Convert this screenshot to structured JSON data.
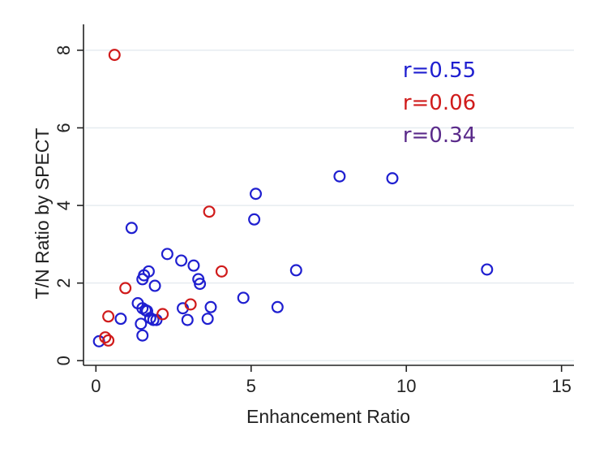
{
  "chart_data": {
    "type": "scatter",
    "title": "",
    "xlabel": "Enhancement Ratio",
    "ylabel": "T/N Ratio by SPECT",
    "xlim": [
      -0.4,
      15.4
    ],
    "ylim": [
      -0.12,
      8.5
    ],
    "xticks": [
      0,
      5,
      10,
      15
    ],
    "yticks": [
      0,
      2,
      4,
      6,
      8
    ],
    "grid": "horizontal",
    "legend": "none",
    "annotations": [
      {
        "text": "r=0.55",
        "color": "#1f1fd0"
      },
      {
        "text": "r=0.06",
        "color": "#d01b1b"
      },
      {
        "text": "r=0.34",
        "color": "#5a2a8a"
      }
    ],
    "series": [
      {
        "color": "#1f1fd0",
        "points": [
          [
            0.1,
            0.5
          ],
          [
            0.8,
            1.08
          ],
          [
            1.15,
            3.42
          ],
          [
            1.35,
            1.48
          ],
          [
            1.45,
            0.95
          ],
          [
            1.5,
            0.65
          ],
          [
            1.5,
            1.35
          ],
          [
            1.5,
            2.1
          ],
          [
            1.55,
            2.2
          ],
          [
            1.6,
            1.3
          ],
          [
            1.65,
            1.28
          ],
          [
            1.7,
            2.3
          ],
          [
            1.75,
            1.1
          ],
          [
            1.85,
            1.05
          ],
          [
            1.9,
            1.93
          ],
          [
            1.95,
            1.05
          ],
          [
            2.3,
            2.75
          ],
          [
            2.75,
            2.58
          ],
          [
            2.8,
            1.35
          ],
          [
            2.95,
            1.05
          ],
          [
            3.15,
            2.45
          ],
          [
            3.3,
            2.1
          ],
          [
            3.35,
            1.98
          ],
          [
            3.6,
            1.08
          ],
          [
            3.7,
            1.38
          ],
          [
            4.75,
            1.62
          ],
          [
            5.1,
            3.64
          ],
          [
            5.15,
            4.3
          ],
          [
            5.85,
            1.38
          ],
          [
            6.45,
            2.33
          ],
          [
            7.85,
            4.75
          ],
          [
            9.55,
            4.7
          ],
          [
            12.6,
            2.35
          ]
        ]
      },
      {
        "color": "#d01b1b",
        "points": [
          [
            0.3,
            0.6
          ],
          [
            0.4,
            1.14
          ],
          [
            0.4,
            0.52
          ],
          [
            0.6,
            7.88
          ],
          [
            0.95,
            1.87
          ],
          [
            2.15,
            1.2
          ],
          [
            3.05,
            1.45
          ],
          [
            3.65,
            3.84
          ],
          [
            4.05,
            2.3
          ]
        ]
      }
    ]
  }
}
